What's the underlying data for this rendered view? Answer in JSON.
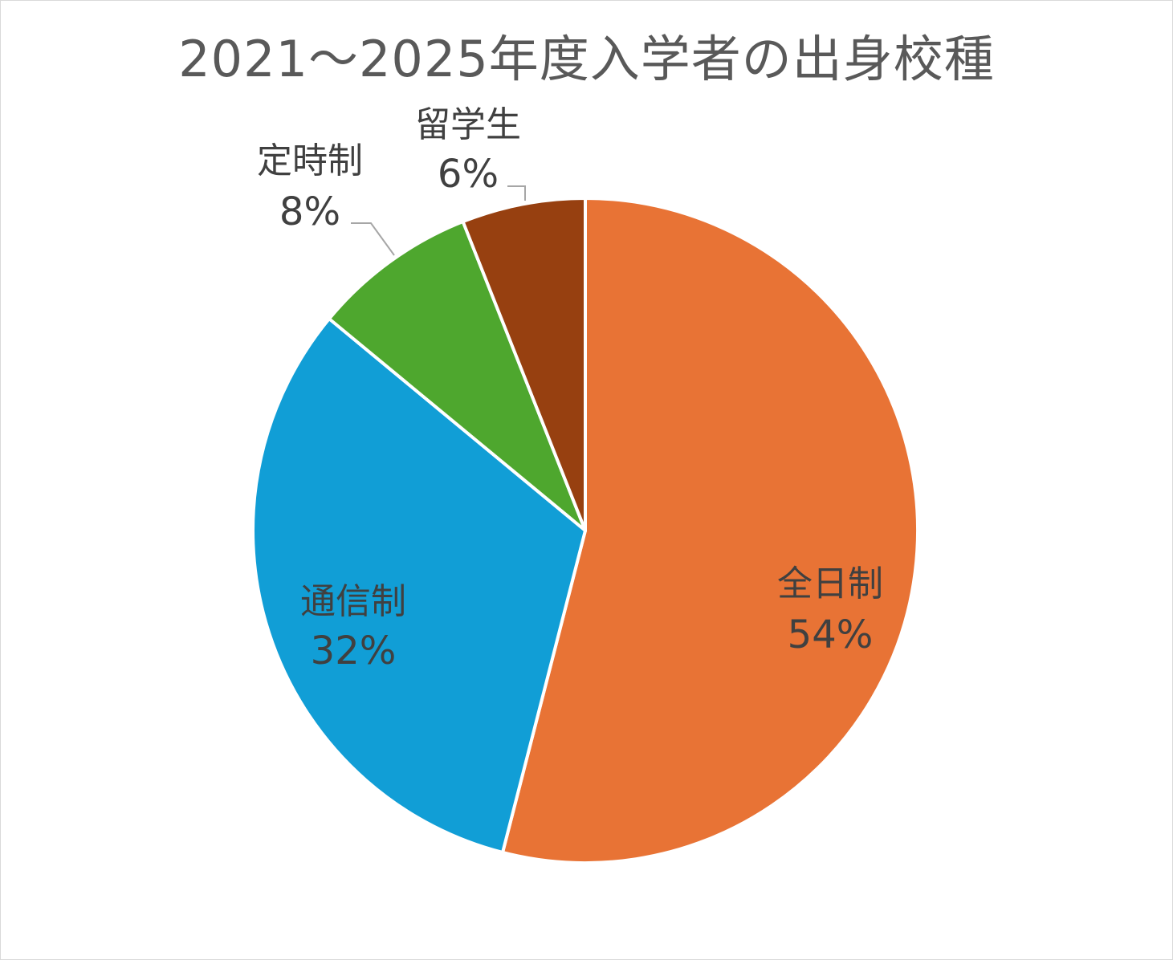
{
  "chart_data": {
    "type": "pie",
    "title": "2021～2025年度入学者の出身校種",
    "slices": [
      {
        "label": "全日制",
        "value": 54,
        "value_label": "54%",
        "color": "#E87335"
      },
      {
        "label": "通信制",
        "value": 32,
        "value_label": "32%",
        "color": "#119ED6"
      },
      {
        "label": "定時制",
        "value": 8,
        "value_label": "8%",
        "color": "#4EA72E"
      },
      {
        "label": "留学生",
        "value": 6,
        "value_label": "6%",
        "color": "#974010"
      }
    ],
    "start_angle": "12 o'clock",
    "direction": "clockwise",
    "slice_border_color": "#ffffff",
    "leader_line_color": "#a6a6a6"
  }
}
